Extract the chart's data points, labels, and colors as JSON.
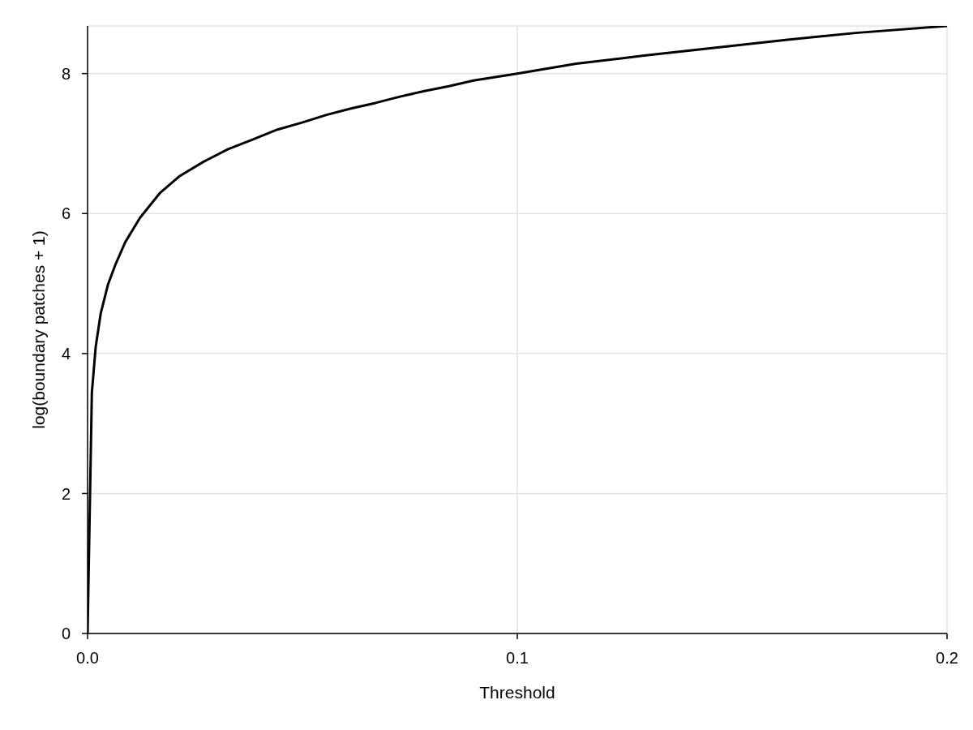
{
  "chart_data": {
    "type": "line",
    "xlabel": "Threshold",
    "ylabel": "log(boundary patches + 1)",
    "x": [
      0,
      0.001,
      0.0019,
      0.00305,
      0.00477,
      0.00648,
      0.00876,
      0.0122,
      0.0168,
      0.0213,
      0.027,
      0.0327,
      0.0385,
      0.0442,
      0.0499,
      0.0556,
      0.0613,
      0.067,
      0.0727,
      0.0784,
      0.0841,
      0.0898,
      0.1,
      0.1137,
      0.1299,
      0.1462,
      0.1624,
      0.1787,
      0.2
    ],
    "values": [
      0,
      3.44,
      4.1,
      4.57,
      4.99,
      5.27,
      5.59,
      5.94,
      6.29,
      6.53,
      6.74,
      6.92,
      7.06,
      7.2,
      7.3,
      7.41,
      7.5,
      7.58,
      7.67,
      7.75,
      7.82,
      7.9,
      8.0,
      8.14,
      8.26,
      8.37,
      8.48,
      8.58,
      8.68
    ],
    "color": "#000000",
    "xlim": [
      0,
      0.2
    ],
    "ylim": [
      0,
      8.68
    ],
    "xticks": [
      {
        "value": 0,
        "label": "0.0"
      },
      0.1,
      0.2
    ],
    "yticks": [
      0,
      2,
      4,
      6,
      8
    ],
    "grid": true
  }
}
